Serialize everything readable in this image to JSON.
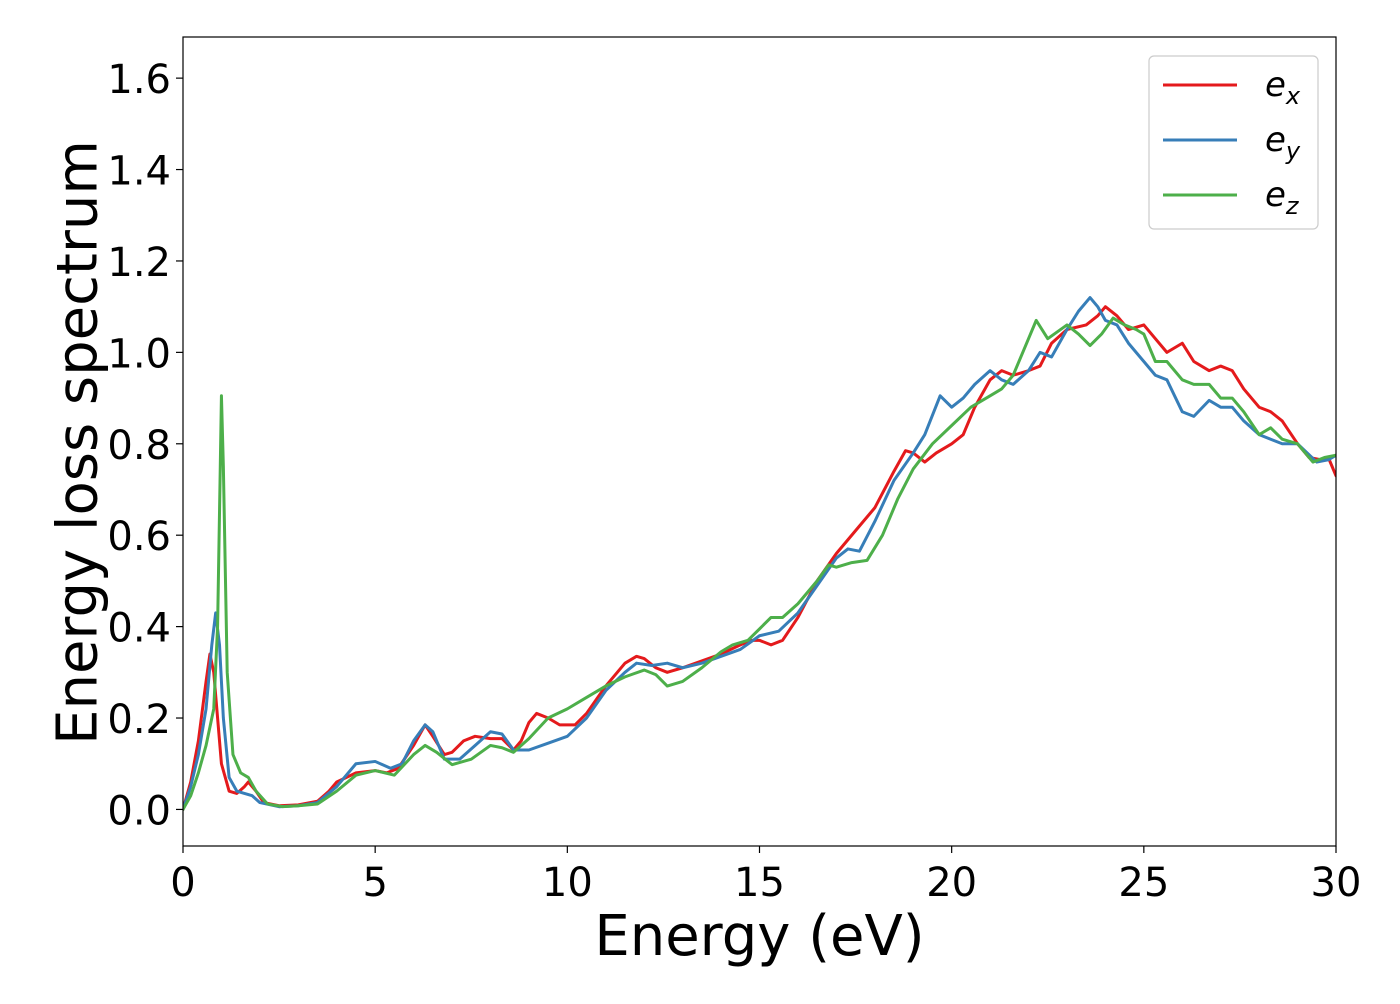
{
  "chart_data": {
    "type": "line",
    "title": "",
    "xlabel": "Energy (eV)",
    "ylabel": "Energy loss spectrum",
    "xlim": [
      0,
      30
    ],
    "ylim": [
      -0.08,
      1.69
    ],
    "xticks": [
      0,
      5,
      10,
      15,
      20,
      25,
      30
    ],
    "yticks": [
      0.0,
      0.2,
      0.4,
      0.6,
      0.8,
      1.0,
      1.2,
      1.4,
      1.6
    ],
    "grid": false,
    "legend_position": "top-right",
    "series": [
      {
        "name": "e_x",
        "label_base": "e",
        "label_sub": "x",
        "color": "#e41a1c",
        "points": [
          [
            0,
            0.0
          ],
          [
            0.2,
            0.06
          ],
          [
            0.4,
            0.15
          ],
          [
            0.6,
            0.28
          ],
          [
            0.7,
            0.34
          ],
          [
            0.8,
            0.3
          ],
          [
            0.9,
            0.2
          ],
          [
            1.0,
            0.1
          ],
          [
            1.2,
            0.04
          ],
          [
            1.4,
            0.035
          ],
          [
            1.6,
            0.05
          ],
          [
            1.7,
            0.06
          ],
          [
            1.9,
            0.04
          ],
          [
            2.1,
            0.015
          ],
          [
            2.5,
            0.008
          ],
          [
            3.0,
            0.01
          ],
          [
            3.5,
            0.018
          ],
          [
            3.8,
            0.04
          ],
          [
            4.0,
            0.06
          ],
          [
            4.5,
            0.08
          ],
          [
            5.0,
            0.085
          ],
          [
            5.3,
            0.08
          ],
          [
            5.6,
            0.09
          ],
          [
            6.0,
            0.14
          ],
          [
            6.3,
            0.185
          ],
          [
            6.5,
            0.16
          ],
          [
            6.8,
            0.12
          ],
          [
            7.0,
            0.125
          ],
          [
            7.3,
            0.15
          ],
          [
            7.6,
            0.16
          ],
          [
            8.0,
            0.155
          ],
          [
            8.3,
            0.155
          ],
          [
            8.6,
            0.13
          ],
          [
            8.8,
            0.15
          ],
          [
            9.0,
            0.19
          ],
          [
            9.2,
            0.21
          ],
          [
            9.5,
            0.2
          ],
          [
            9.8,
            0.185
          ],
          [
            10.2,
            0.185
          ],
          [
            10.5,
            0.21
          ],
          [
            11.0,
            0.27
          ],
          [
            11.5,
            0.32
          ],
          [
            11.8,
            0.335
          ],
          [
            12.0,
            0.33
          ],
          [
            12.3,
            0.31
          ],
          [
            12.6,
            0.3
          ],
          [
            13.0,
            0.31
          ],
          [
            13.5,
            0.325
          ],
          [
            14.0,
            0.34
          ],
          [
            14.5,
            0.36
          ],
          [
            14.8,
            0.37
          ],
          [
            15.0,
            0.37
          ],
          [
            15.3,
            0.36
          ],
          [
            15.6,
            0.37
          ],
          [
            16.0,
            0.42
          ],
          [
            16.5,
            0.5
          ],
          [
            17.0,
            0.56
          ],
          [
            17.5,
            0.61
          ],
          [
            18.0,
            0.66
          ],
          [
            18.5,
            0.74
          ],
          [
            18.8,
            0.785
          ],
          [
            19.0,
            0.78
          ],
          [
            19.3,
            0.76
          ],
          [
            19.6,
            0.78
          ],
          [
            20.0,
            0.8
          ],
          [
            20.3,
            0.82
          ],
          [
            20.6,
            0.88
          ],
          [
            21.0,
            0.94
          ],
          [
            21.3,
            0.96
          ],
          [
            21.6,
            0.95
          ],
          [
            22.0,
            0.96
          ],
          [
            22.3,
            0.97
          ],
          [
            22.6,
            1.02
          ],
          [
            23.0,
            1.05
          ],
          [
            23.5,
            1.06
          ],
          [
            23.8,
            1.08
          ],
          [
            24.0,
            1.1
          ],
          [
            24.3,
            1.08
          ],
          [
            24.6,
            1.05
          ],
          [
            25.0,
            1.06
          ],
          [
            25.3,
            1.03
          ],
          [
            25.6,
            1.0
          ],
          [
            26.0,
            1.02
          ],
          [
            26.3,
            0.98
          ],
          [
            26.7,
            0.96
          ],
          [
            27.0,
            0.97
          ],
          [
            27.3,
            0.96
          ],
          [
            27.6,
            0.92
          ],
          [
            28.0,
            0.88
          ],
          [
            28.3,
            0.87
          ],
          [
            28.6,
            0.85
          ],
          [
            29.0,
            0.8
          ],
          [
            29.3,
            0.77
          ],
          [
            29.6,
            0.765
          ],
          [
            29.8,
            0.77
          ],
          [
            30.0,
            0.73
          ]
        ]
      },
      {
        "name": "e_y",
        "label_base": "e",
        "label_sub": "y",
        "color": "#377eb8",
        "points": [
          [
            0,
            0.0
          ],
          [
            0.2,
            0.05
          ],
          [
            0.4,
            0.12
          ],
          [
            0.6,
            0.22
          ],
          [
            0.75,
            0.36
          ],
          [
            0.85,
            0.43
          ],
          [
            0.95,
            0.36
          ],
          [
            1.05,
            0.2
          ],
          [
            1.2,
            0.07
          ],
          [
            1.4,
            0.04
          ],
          [
            1.6,
            0.035
          ],
          [
            1.8,
            0.03
          ],
          [
            2.0,
            0.015
          ],
          [
            2.5,
            0.006
          ],
          [
            3.0,
            0.008
          ],
          [
            3.5,
            0.015
          ],
          [
            4.0,
            0.05
          ],
          [
            4.5,
            0.1
          ],
          [
            5.0,
            0.105
          ],
          [
            5.4,
            0.09
          ],
          [
            5.7,
            0.1
          ],
          [
            6.0,
            0.15
          ],
          [
            6.3,
            0.185
          ],
          [
            6.5,
            0.17
          ],
          [
            6.8,
            0.11
          ],
          [
            7.2,
            0.11
          ],
          [
            7.6,
            0.14
          ],
          [
            8.0,
            0.17
          ],
          [
            8.3,
            0.165
          ],
          [
            8.6,
            0.13
          ],
          [
            9.0,
            0.13
          ],
          [
            9.5,
            0.145
          ],
          [
            10.0,
            0.16
          ],
          [
            10.5,
            0.2
          ],
          [
            11.0,
            0.26
          ],
          [
            11.5,
            0.3
          ],
          [
            11.8,
            0.32
          ],
          [
            12.2,
            0.315
          ],
          [
            12.6,
            0.32
          ],
          [
            13.0,
            0.31
          ],
          [
            13.5,
            0.32
          ],
          [
            14.0,
            0.335
          ],
          [
            14.5,
            0.35
          ],
          [
            15.0,
            0.38
          ],
          [
            15.5,
            0.39
          ],
          [
            16.0,
            0.43
          ],
          [
            16.5,
            0.49
          ],
          [
            17.0,
            0.55
          ],
          [
            17.3,
            0.57
          ],
          [
            17.6,
            0.565
          ],
          [
            18.0,
            0.63
          ],
          [
            18.5,
            0.72
          ],
          [
            19.0,
            0.78
          ],
          [
            19.3,
            0.82
          ],
          [
            19.7,
            0.905
          ],
          [
            20.0,
            0.88
          ],
          [
            20.3,
            0.9
          ],
          [
            20.6,
            0.93
          ],
          [
            21.0,
            0.96
          ],
          [
            21.3,
            0.94
          ],
          [
            21.6,
            0.93
          ],
          [
            22.0,
            0.96
          ],
          [
            22.3,
            1.0
          ],
          [
            22.6,
            0.99
          ],
          [
            23.0,
            1.05
          ],
          [
            23.3,
            1.09
          ],
          [
            23.6,
            1.12
          ],
          [
            23.8,
            1.1
          ],
          [
            24.0,
            1.07
          ],
          [
            24.3,
            1.06
          ],
          [
            24.6,
            1.02
          ],
          [
            25.0,
            0.98
          ],
          [
            25.3,
            0.95
          ],
          [
            25.6,
            0.94
          ],
          [
            26.0,
            0.87
          ],
          [
            26.3,
            0.86
          ],
          [
            26.7,
            0.895
          ],
          [
            27.0,
            0.88
          ],
          [
            27.3,
            0.88
          ],
          [
            27.6,
            0.85
          ],
          [
            28.0,
            0.82
          ],
          [
            28.3,
            0.81
          ],
          [
            28.6,
            0.8
          ],
          [
            29.0,
            0.8
          ],
          [
            29.5,
            0.76
          ],
          [
            29.8,
            0.765
          ],
          [
            30.0,
            0.775
          ]
        ]
      },
      {
        "name": "e_z",
        "label_base": "e",
        "label_sub": "z",
        "color": "#4daf4a",
        "points": [
          [
            0,
            0.0
          ],
          [
            0.2,
            0.03
          ],
          [
            0.4,
            0.08
          ],
          [
            0.6,
            0.14
          ],
          [
            0.8,
            0.22
          ],
          [
            0.9,
            0.4
          ],
          [
            0.97,
            0.75
          ],
          [
            1.0,
            0.905
          ],
          [
            1.05,
            0.75
          ],
          [
            1.15,
            0.3
          ],
          [
            1.3,
            0.12
          ],
          [
            1.5,
            0.08
          ],
          [
            1.7,
            0.07
          ],
          [
            1.9,
            0.04
          ],
          [
            2.2,
            0.012
          ],
          [
            2.6,
            0.006
          ],
          [
            3.0,
            0.008
          ],
          [
            3.5,
            0.012
          ],
          [
            4.0,
            0.04
          ],
          [
            4.5,
            0.075
          ],
          [
            5.0,
            0.085
          ],
          [
            5.5,
            0.075
          ],
          [
            6.0,
            0.12
          ],
          [
            6.3,
            0.14
          ],
          [
            6.6,
            0.125
          ],
          [
            7.0,
            0.098
          ],
          [
            7.5,
            0.11
          ],
          [
            8.0,
            0.14
          ],
          [
            8.3,
            0.135
          ],
          [
            8.6,
            0.125
          ],
          [
            9.0,
            0.155
          ],
          [
            9.5,
            0.2
          ],
          [
            10.0,
            0.22
          ],
          [
            10.5,
            0.245
          ],
          [
            11.0,
            0.27
          ],
          [
            11.5,
            0.29
          ],
          [
            12.0,
            0.305
          ],
          [
            12.3,
            0.295
          ],
          [
            12.6,
            0.27
          ],
          [
            13.0,
            0.28
          ],
          [
            13.5,
            0.31
          ],
          [
            14.0,
            0.345
          ],
          [
            14.3,
            0.36
          ],
          [
            14.7,
            0.37
          ],
          [
            15.0,
            0.395
          ],
          [
            15.3,
            0.42
          ],
          [
            15.6,
            0.42
          ],
          [
            16.0,
            0.45
          ],
          [
            16.5,
            0.5
          ],
          [
            16.8,
            0.535
          ],
          [
            17.0,
            0.53
          ],
          [
            17.4,
            0.54
          ],
          [
            17.8,
            0.545
          ],
          [
            18.2,
            0.6
          ],
          [
            18.6,
            0.68
          ],
          [
            19.0,
            0.745
          ],
          [
            19.5,
            0.8
          ],
          [
            20.0,
            0.84
          ],
          [
            20.5,
            0.88
          ],
          [
            21.0,
            0.905
          ],
          [
            21.3,
            0.92
          ],
          [
            21.6,
            0.95
          ],
          [
            22.0,
            1.03
          ],
          [
            22.2,
            1.07
          ],
          [
            22.5,
            1.03
          ],
          [
            23.0,
            1.06
          ],
          [
            23.3,
            1.04
          ],
          [
            23.6,
            1.015
          ],
          [
            23.9,
            1.04
          ],
          [
            24.2,
            1.075
          ],
          [
            24.5,
            1.06
          ],
          [
            24.8,
            1.05
          ],
          [
            25.0,
            1.04
          ],
          [
            25.3,
            0.98
          ],
          [
            25.6,
            0.98
          ],
          [
            26.0,
            0.94
          ],
          [
            26.3,
            0.93
          ],
          [
            26.7,
            0.93
          ],
          [
            27.0,
            0.9
          ],
          [
            27.3,
            0.9
          ],
          [
            27.6,
            0.87
          ],
          [
            28.0,
            0.82
          ],
          [
            28.3,
            0.835
          ],
          [
            28.6,
            0.81
          ],
          [
            29.0,
            0.8
          ],
          [
            29.4,
            0.76
          ],
          [
            29.7,
            0.77
          ],
          [
            30.0,
            0.775
          ]
        ]
      }
    ]
  }
}
